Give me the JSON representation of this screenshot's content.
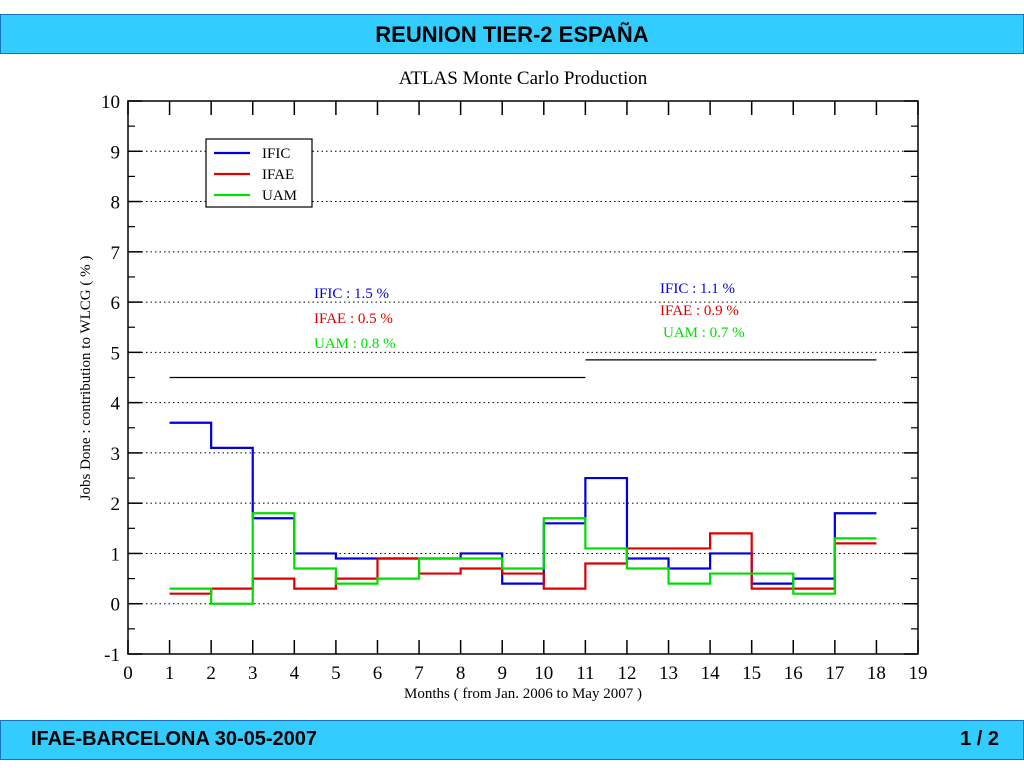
{
  "header": {
    "title": "REUNION  TIER-2  ESPAÑA"
  },
  "footer": {
    "left": "IFAE-BARCELONA  30-05-2007",
    "right": "1 / 2"
  },
  "colors": {
    "banner": "#33ccff",
    "ific": "#0000dd",
    "ifae": "#dd0000",
    "uam": "#00dd00"
  },
  "chart_data": {
    "type": "line",
    "step": true,
    "title": "ATLAS  Monte  Carlo  Production",
    "xlabel": "Months  ( from Jan. 2006  to  May 2007 )",
    "ylabel": "Jobs  Done  :    contribution to WLCG  ( % )",
    "xlim": [
      0,
      19
    ],
    "ylim": [
      -1,
      10
    ],
    "x_ticks": [
      "0",
      "1",
      "2",
      "3",
      "4",
      "5",
      "6",
      "7",
      "8",
      "9",
      "10",
      "11",
      "12",
      "13",
      "14",
      "15",
      "16",
      "17",
      "18",
      "19"
    ],
    "y_ticks": [
      "-1",
      "0",
      "1",
      "2",
      "3",
      "4",
      "5",
      "6",
      "7",
      "8",
      "9",
      "10"
    ],
    "grid": "horizontal dotted",
    "legend_position": "top-left",
    "x_edges": [
      1,
      2,
      3,
      4,
      5,
      6,
      7,
      8,
      9,
      10,
      11,
      12,
      13,
      14,
      15,
      16,
      17,
      18
    ],
    "series": [
      {
        "name": "IFIC",
        "color": "#0000dd",
        "values": [
          3.6,
          3.1,
          1.7,
          1.0,
          0.9,
          0.9,
          0.9,
          1.0,
          0.4,
          1.6,
          2.5,
          0.9,
          0.7,
          1.0,
          0.4,
          0.5,
          1.8
        ]
      },
      {
        "name": "IFAE",
        "color": "#dd0000",
        "values": [
          0.2,
          0.3,
          0.5,
          0.3,
          0.5,
          0.9,
          0.6,
          0.7,
          0.6,
          0.3,
          0.8,
          1.1,
          1.1,
          1.4,
          0.3,
          0.3,
          1.2
        ]
      },
      {
        "name": "UAM",
        "color": "#00dd00",
        "values": [
          0.3,
          0.0,
          1.8,
          0.7,
          0.4,
          0.5,
          0.9,
          0.9,
          0.7,
          1.7,
          1.1,
          0.7,
          0.4,
          0.6,
          0.6,
          0.2,
          1.3
        ]
      }
    ],
    "periods": [
      {
        "x_range": [
          1,
          11
        ],
        "y": 4.5,
        "annotations": [
          {
            "series": "IFIC",
            "label": "IFIC :",
            "value": "1.5 %"
          },
          {
            "series": "IFAE",
            "label": "IFAE :",
            "value": "0.5 %"
          },
          {
            "series": "UAM",
            "label": "UAM :",
            "value": "0.8 %"
          }
        ]
      },
      {
        "x_range": [
          11,
          18
        ],
        "y": 4.85,
        "annotations": [
          {
            "series": "IFIC",
            "label": "IFIC :",
            "value": "1.1 %"
          },
          {
            "series": "IFAE",
            "label": "IFAE :",
            "value": "0.9 %"
          },
          {
            "series": "UAM",
            "label": "UAM :",
            "value": "0.7 %"
          }
        ]
      }
    ]
  }
}
